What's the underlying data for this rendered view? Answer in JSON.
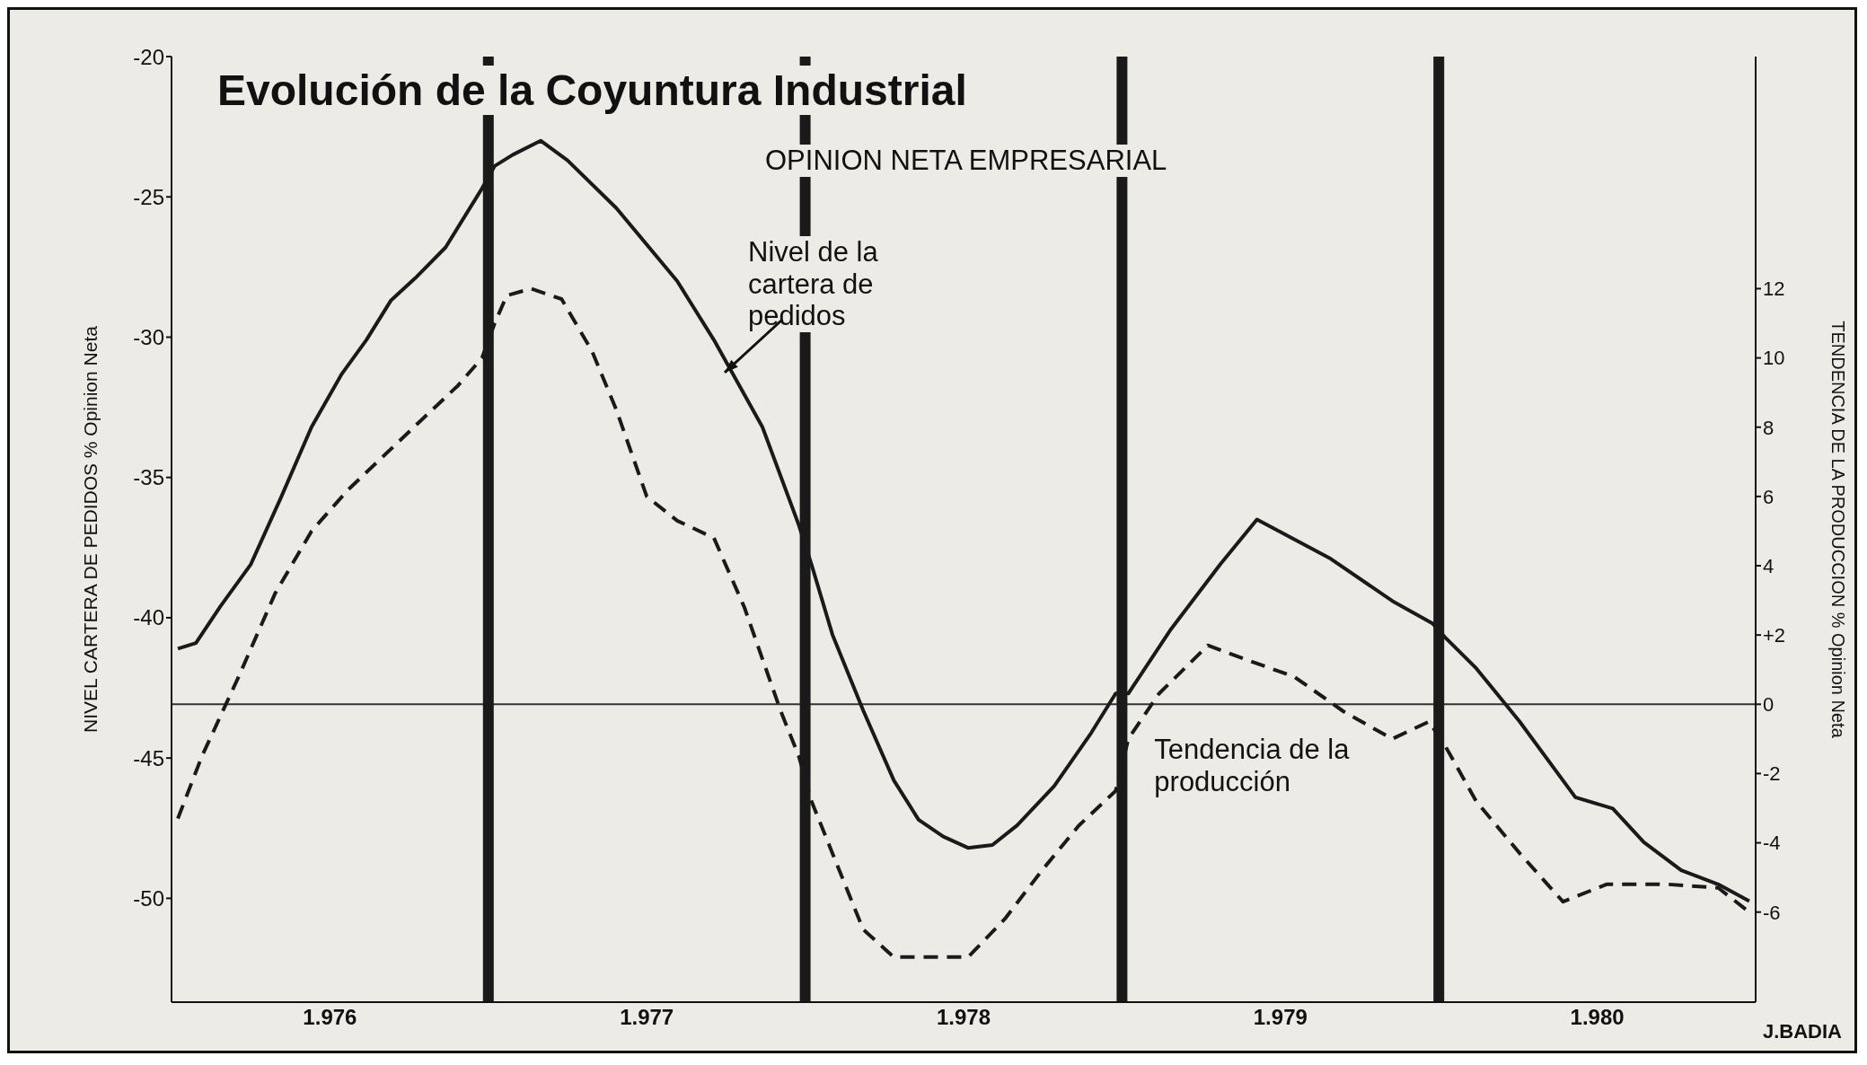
{
  "chart_data": {
    "type": "line",
    "title": "Evolución de la Coyuntura Industrial",
    "subtitle": "OPINION NETA EMPRESARIAL",
    "ylabel": "NIVEL CARTERA DE PEDIDOS % Opinion Neta",
    "y2label": "TENDENCIA DE LA PRODUCCION % Opinion Neta",
    "annotations": [
      "J.BADIA"
    ],
    "xlim": [
      1976,
      1981
    ],
    "xticks": [
      {
        "value": 1976.5,
        "label": "1.976"
      },
      {
        "value": 1977.5,
        "label": "1.977"
      },
      {
        "value": 1978.5,
        "label": "1.978"
      },
      {
        "value": 1979.5,
        "label": "1.979"
      },
      {
        "value": 1980.5,
        "label": "1.980"
      }
    ],
    "ylim": [
      -53.7,
      -20
    ],
    "yticks": [
      -20,
      -25,
      -30,
      -35,
      -40,
      -45,
      -50
    ],
    "y2lim": [
      -8.6,
      18.7
    ],
    "y2ticks": [
      12,
      10,
      8,
      6,
      4,
      {
        "value": 2,
        "label": "+2"
      },
      0,
      -2,
      -4,
      -6
    ],
    "ref_lines": [
      {
        "axis": "y2",
        "value": 0,
        "color": "#333333"
      },
      {
        "axis": "x",
        "value": 1977,
        "color": "#1a1a1a"
      },
      {
        "axis": "x",
        "value": 1978,
        "color": "#1a1a1a"
      },
      {
        "axis": "x",
        "value": 1979,
        "color": "#1a1a1a"
      },
      {
        "axis": "x",
        "value": 1980,
        "color": "#1a1a1a"
      }
    ],
    "series": [
      {
        "name": "Nivel de la cartera de pedidos",
        "color": "#1a1a1a",
        "line_style": "solid",
        "axis": "y",
        "x": [
          1976.02,
          1976.077,
          1976.154,
          1976.25,
          1976.346,
          1976.442,
          1976.538,
          1976.615,
          1976.692,
          1976.769,
          1976.865,
          1976.98,
          1977.02,
          1977.077,
          1977.165,
          1977.25,
          1977.404,
          1977.596,
          1977.712,
          1977.865,
          1977.98,
          1978.02,
          1978.086,
          1978.183,
          1978.28,
          1978.358,
          1978.436,
          1978.514,
          1978.591,
          1978.669,
          1978.786,
          1978.903,
          1978.98,
          1979.02,
          1979.155,
          1979.31,
          1979.426,
          1979.659,
          1979.853,
          1979.98,
          1980.02,
          1980.118,
          1980.255,
          1980.431,
          1980.549,
          1980.647,
          1980.765,
          1980.882,
          1980.98
        ],
        "values": [
          -41.1,
          -40.9,
          -39.6,
          -38.1,
          -35.7,
          -33.2,
          -31.3,
          -30.1,
          -28.7,
          -27.9,
          -26.8,
          -24.7,
          -23.9,
          -23.5,
          -23.0,
          -23.7,
          -25.4,
          -28.0,
          -30.1,
          -33.2,
          -36.7,
          -38.1,
          -40.6,
          -43.3,
          -45.8,
          -47.2,
          -47.8,
          -48.2,
          -48.1,
          -47.4,
          -46.0,
          -44.1,
          -42.7,
          -42.7,
          -40.4,
          -38.1,
          -36.5,
          -37.9,
          -39.4,
          -40.2,
          -40.7,
          -41.8,
          -43.7,
          -46.4,
          -46.8,
          -48.0,
          -49.0,
          -49.5,
          -50.1
        ]
      },
      {
        "name": "Tendencia de la producción",
        "color": "#1a1a1a",
        "line_style": "dashed",
        "axis": "y2",
        "x": [
          1976.02,
          1976.096,
          1976.212,
          1976.327,
          1976.442,
          1976.558,
          1976.673,
          1976.788,
          1976.904,
          1976.98,
          1977.02,
          1977.058,
          1977.135,
          1977.231,
          1977.327,
          1977.404,
          1977.5,
          1977.596,
          1977.712,
          1977.808,
          1977.923,
          1977.98,
          1978.02,
          1978.086,
          1978.183,
          1978.28,
          1978.397,
          1978.514,
          1978.63,
          1978.747,
          1978.864,
          1978.98,
          1979.02,
          1979.116,
          1979.271,
          1979.388,
          1979.543,
          1979.698,
          1979.853,
          1979.969,
          1980.02,
          1980.118,
          1980.255,
          1980.392,
          1980.529,
          1980.725,
          1980.882,
          1980.98
        ],
        "values": [
          -3.3,
          -1.5,
          0.8,
          3.2,
          5.0,
          6.2,
          7.2,
          8.2,
          9.2,
          10.0,
          11.0,
          11.8,
          12.0,
          11.7,
          10.2,
          8.5,
          6.0,
          5.3,
          4.8,
          2.8,
          -0.2,
          -1.5,
          -2.8,
          -4.3,
          -6.5,
          -7.3,
          -7.3,
          -7.3,
          -6.2,
          -4.8,
          -3.5,
          -2.5,
          -1.0,
          0.3,
          1.7,
          1.3,
          0.8,
          -0.2,
          -1.0,
          -0.5,
          -1.2,
          -2.8,
          -4.3,
          -5.7,
          -5.2,
          -5.2,
          -5.3,
          -6.0
        ]
      }
    ]
  }
}
